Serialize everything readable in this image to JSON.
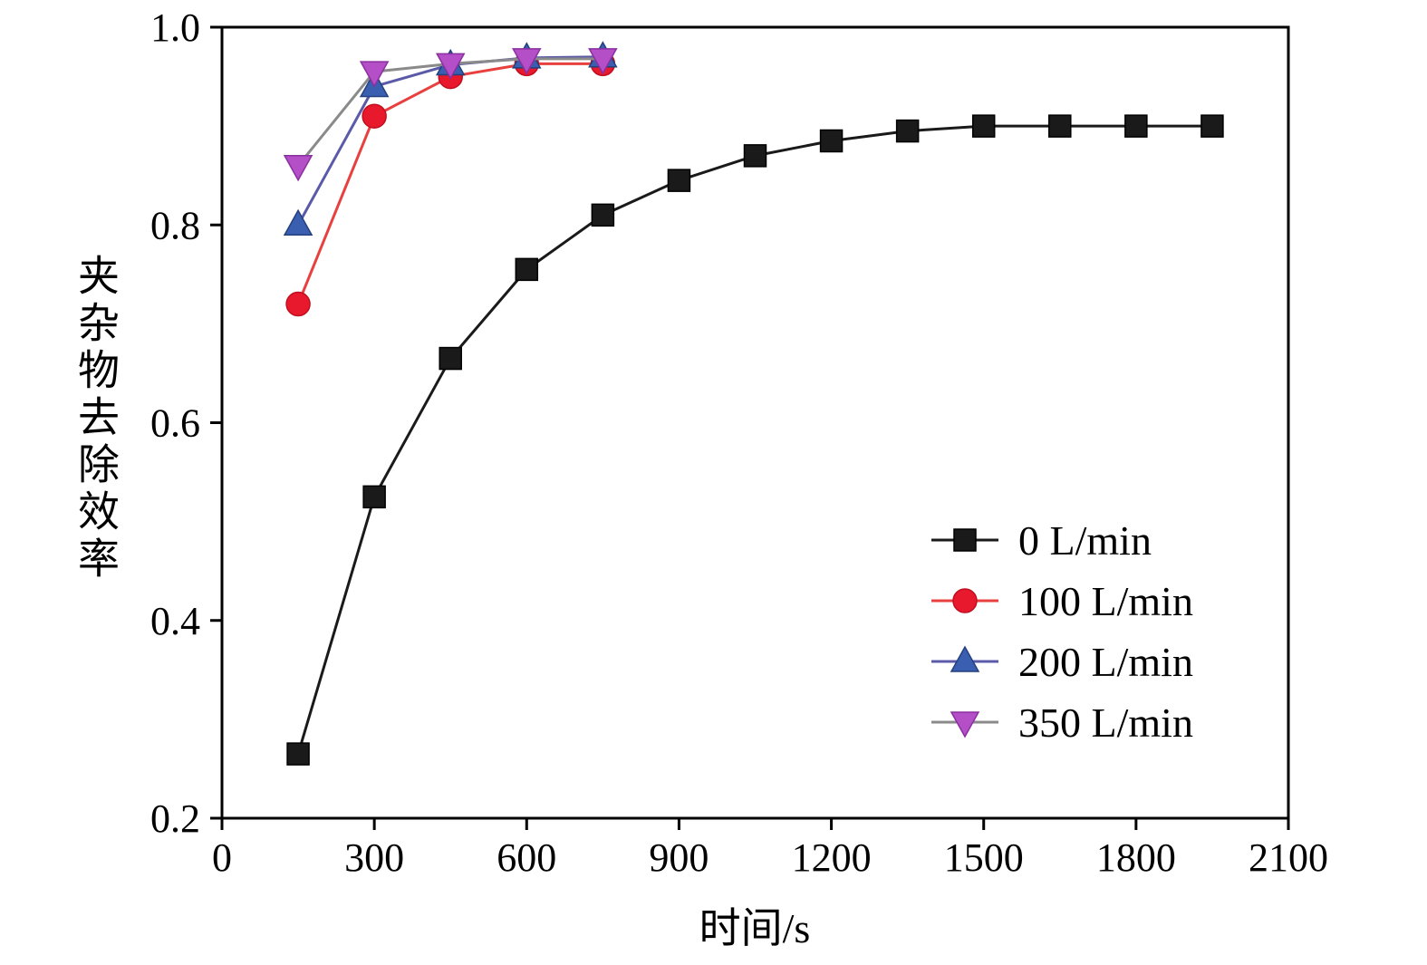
{
  "chart_data": {
    "type": "line",
    "title": "",
    "xlabel": "时间/s",
    "ylabel": "夹杂物去除效率",
    "xlim": [
      0,
      2100
    ],
    "ylim": [
      0.2,
      1.0
    ],
    "xticks": [
      0,
      300,
      600,
      900,
      1200,
      1500,
      1800,
      2100
    ],
    "yticks": [
      0.2,
      0.4,
      0.6,
      0.8,
      1.0
    ],
    "grid": false,
    "legend_position": "lower right",
    "series": [
      {
        "name": "0 L/min",
        "marker": "square",
        "marker_color": "#1a1a1a",
        "edge_color": "#000000",
        "line_color": "#1a1a1a",
        "x": [
          150,
          300,
          450,
          600,
          750,
          900,
          1050,
          1200,
          1350,
          1500,
          1650,
          1800,
          1950
        ],
        "y": [
          0.265,
          0.525,
          0.665,
          0.755,
          0.81,
          0.845,
          0.87,
          0.885,
          0.895,
          0.9,
          0.9,
          0.9,
          0.9
        ]
      },
      {
        "name": "100 L/min",
        "marker": "circle",
        "marker_color": "#e8192c",
        "edge_color": "#c00f20",
        "line_color": "#e8403f",
        "x": [
          150,
          300,
          450,
          600,
          750
        ],
        "y": [
          0.72,
          0.91,
          0.95,
          0.963,
          0.963
        ]
      },
      {
        "name": "200 L/min",
        "marker": "triangle-up",
        "marker_color": "#3b5fb0",
        "edge_color": "#24407f",
        "line_color": "#5a5aa8",
        "x": [
          150,
          300,
          450,
          600,
          750
        ],
        "y": [
          0.8,
          0.94,
          0.962,
          0.969,
          0.97
        ]
      },
      {
        "name": "350 L/min",
        "marker": "triangle-down",
        "marker_color": "#b44fc8",
        "edge_color": "#8a2fa0",
        "line_color": "#8a8a8a",
        "x": [
          150,
          300,
          450,
          600,
          750
        ],
        "y": [
          0.86,
          0.955,
          0.963,
          0.968,
          0.968
        ]
      }
    ]
  }
}
